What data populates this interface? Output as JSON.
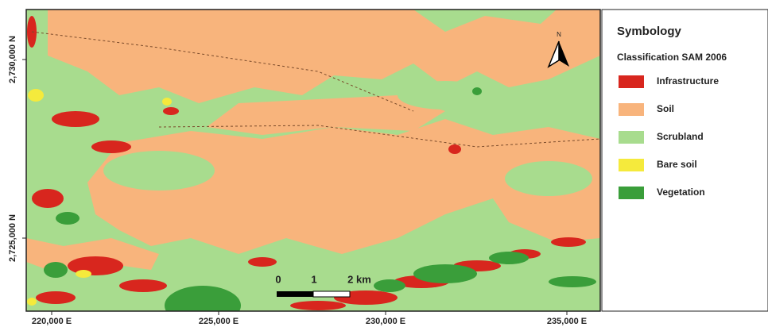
{
  "map": {
    "north_label": "N",
    "scale_labels": [
      "0",
      "1",
      "2 km"
    ],
    "x_labels": [
      "220,000 E",
      "225,000 E",
      "230,000 E",
      "235,000 E"
    ],
    "y_labels": [
      "2,730,000 N",
      "2,725,000 N"
    ]
  },
  "legend": {
    "title": "Symbology",
    "subtitle": "Classification SAM 2006",
    "items": [
      {
        "label": "Infrastructure",
        "color": "#d8261e"
      },
      {
        "label": "Soil",
        "color": "#f8b47c"
      },
      {
        "label": "Scrubland",
        "color": "#a8dc8e"
      },
      {
        "label": "Bare soil",
        "color": "#f5ea3c"
      },
      {
        "label": "Vegetation",
        "color": "#3a9e3a"
      }
    ]
  }
}
